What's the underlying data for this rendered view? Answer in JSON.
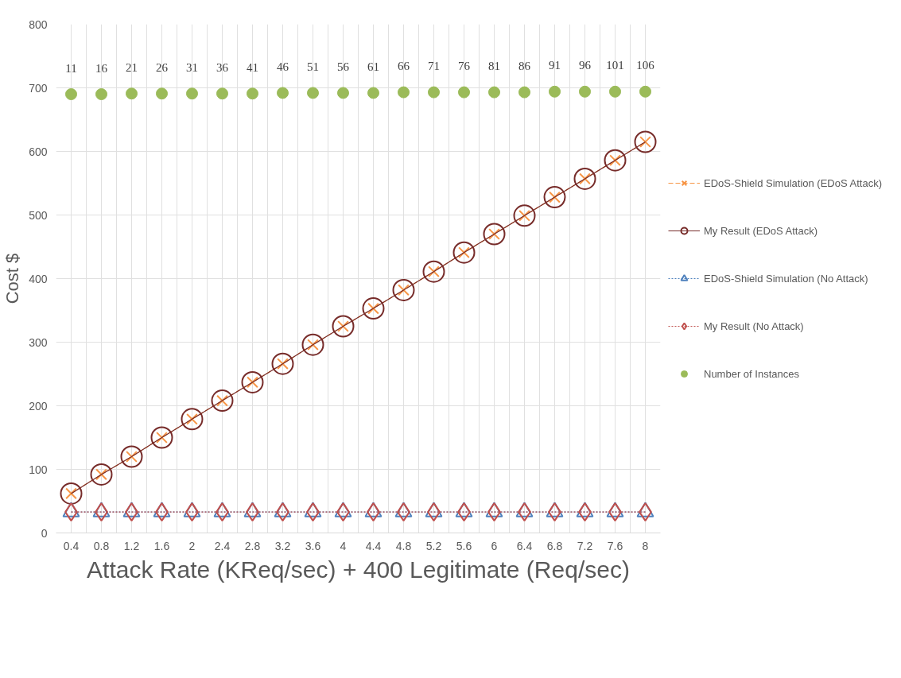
{
  "chart_data": {
    "type": "line",
    "xlabel": "Attack Rate (KReq/sec) + 400 Legitimate (Req/sec)",
    "ylabel": "Cost $",
    "categories": [
      "0.4",
      "0.8",
      "1.2",
      "1.6",
      "2",
      "2.4",
      "2.8",
      "3.2",
      "3.6",
      "4",
      "4.4",
      "4.8",
      "5.2",
      "5.6",
      "6",
      "6.4",
      "6.8",
      "7.2",
      "7.6",
      "8"
    ],
    "ylim": [
      0,
      800
    ],
    "yticks": [
      0,
      100,
      200,
      300,
      400,
      500,
      600,
      700,
      800
    ],
    "grid": true,
    "legend": "right",
    "series": [
      {
        "name": "EDoS-Shield Simulation (EDoS Attack)",
        "color": "#f79646",
        "marker": "cross",
        "line_style": "dashed",
        "values": [
          62,
          92,
          120,
          150,
          179,
          208,
          237,
          266,
          296,
          325,
          353,
          382,
          411,
          441,
          470,
          499,
          528,
          557,
          586,
          615
        ]
      },
      {
        "name": "My Result (EDoS Attack)",
        "color": "#772c2a",
        "marker": "circle",
        "line_style": "solid",
        "values": [
          62,
          92,
          120,
          150,
          179,
          208,
          237,
          266,
          296,
          325,
          353,
          382,
          411,
          441,
          470,
          499,
          528,
          557,
          586,
          615
        ]
      },
      {
        "name": "EDoS-Shield Simulation (No Attack)",
        "color": "#4f81bd",
        "marker": "triangle",
        "line_style": "dotted",
        "values": [
          33,
          33,
          33,
          33,
          33,
          33,
          33,
          33,
          33,
          33,
          33,
          33,
          33,
          33,
          33,
          33,
          33,
          33,
          33,
          33
        ]
      },
      {
        "name": "My Result (No Attack)",
        "color": "#c0504d",
        "marker": "diamond",
        "line_style": "dotted",
        "values": [
          33,
          33,
          33,
          33,
          33,
          33,
          33,
          33,
          33,
          33,
          33,
          33,
          33,
          33,
          33,
          33,
          33,
          33,
          33,
          33
        ]
      },
      {
        "name": "Number of Instances",
        "type": "scatter",
        "color": "#9bbb59",
        "marker": "circle",
        "values": [
          690,
          690,
          691,
          691,
          691,
          691,
          691,
          692,
          692,
          692,
          692,
          693,
          693,
          693,
          693,
          693,
          694,
          694,
          694,
          694
        ]
      }
    ],
    "annotations": [
      {
        "text": "11",
        "x": "0.4",
        "y": 690
      },
      {
        "text": "16",
        "x": "0.8",
        "y": 690
      },
      {
        "text": "21",
        "x": "1.2",
        "y": 691
      },
      {
        "text": "26",
        "x": "1.6",
        "y": 691
      },
      {
        "text": "31",
        "x": "2",
        "y": 691
      },
      {
        "text": "36",
        "x": "2.4",
        "y": 691
      },
      {
        "text": "41",
        "x": "2.8",
        "y": 691
      },
      {
        "text": "46",
        "x": "3.2",
        "y": 692
      },
      {
        "text": "51",
        "x": "3.6",
        "y": 692
      },
      {
        "text": "56",
        "x": "4",
        "y": 692
      },
      {
        "text": "61",
        "x": "4.4",
        "y": 692
      },
      {
        "text": "66",
        "x": "4.8",
        "y": 693
      },
      {
        "text": "71",
        "x": "5.2",
        "y": 693
      },
      {
        "text": "76",
        "x": "5.6",
        "y": 693
      },
      {
        "text": "81",
        "x": "6",
        "y": 693
      },
      {
        "text": "86",
        "x": "6.4",
        "y": 693
      },
      {
        "text": "91",
        "x": "6.8",
        "y": 694
      },
      {
        "text": "96",
        "x": "7.2",
        "y": 694
      },
      {
        "text": "101",
        "x": "7.6",
        "y": 694
      },
      {
        "text": "106",
        "x": "8",
        "y": 694
      }
    ]
  }
}
